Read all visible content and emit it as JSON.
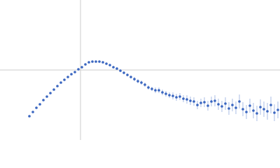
{
  "chart_data": {
    "type": "scatter",
    "x": [
      -73,
      -68,
      -63,
      -58,
      -53,
      -48,
      -43,
      -38,
      -33,
      -28,
      -23,
      -18,
      -13,
      -8,
      -3,
      2,
      7,
      12,
      17,
      22,
      27,
      32,
      37,
      42,
      47,
      52,
      57,
      62,
      67,
      72,
      77,
      82,
      87,
      92,
      97,
      102,
      107,
      112,
      117,
      122,
      127,
      132,
      137,
      142,
      147,
      152,
      157,
      162,
      167,
      172,
      177,
      182,
      187,
      192,
      197,
      202,
      207,
      212,
      217,
      222,
      227,
      232,
      237,
      242,
      247,
      252,
      257,
      262,
      267,
      272,
      277,
      282
    ],
    "y": [
      -66,
      -60,
      -54,
      -49,
      -43,
      -38,
      -33,
      -28,
      -23,
      -18,
      -14,
      -10,
      -6,
      -3,
      1,
      4,
      8,
      11,
      12,
      12,
      12,
      11,
      9,
      7,
      4,
      2,
      -1,
      -4,
      -7,
      -10,
      -13,
      -16,
      -18,
      -21,
      -25,
      -27,
      -29,
      -29,
      -32,
      -34,
      -36,
      -37,
      -39,
      -38,
      -41,
      -42,
      -44,
      -45,
      -50,
      -47,
      -46,
      -51,
      -45,
      -44,
      -49,
      -52,
      -48,
      -55,
      -50,
      -54,
      -45,
      -56,
      -60,
      -51,
      -58,
      -62,
      -53,
      -56,
      -59,
      -50,
      -61,
      -57
    ],
    "errors": [
      1,
      1,
      1,
      1,
      1,
      1,
      1,
      1,
      1,
      1,
      1,
      1,
      1,
      1,
      1,
      1,
      1,
      1,
      1,
      1,
      1,
      1,
      1,
      1,
      1,
      2,
      2,
      2,
      2,
      2,
      3,
      3,
      3,
      3,
      3,
      3,
      4,
      4,
      4,
      4,
      4,
      5,
      5,
      5,
      5,
      6,
      6,
      6,
      6,
      6,
      7,
      7,
      7,
      8,
      8,
      8,
      9,
      9,
      9,
      9,
      10,
      10,
      10,
      10,
      11,
      11,
      11,
      11,
      12,
      12,
      12,
      12
    ],
    "color": "#3a66c0",
    "error_color": "#a9bce4",
    "xlim": [
      -115,
      285
    ],
    "ylim": [
      -100,
      100
    ],
    "zero_lines": true
  }
}
